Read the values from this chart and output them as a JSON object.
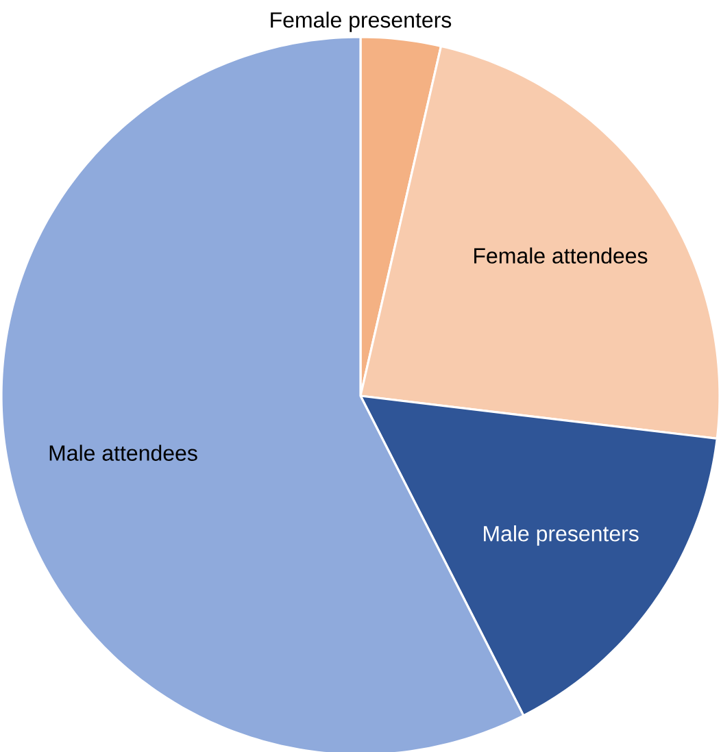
{
  "chart_data": {
    "type": "pie",
    "categories": [
      "Female presenters",
      "Female attendees",
      "Male presenters",
      "Male attendees"
    ],
    "values": [
      3.6,
      23.3,
      15.6,
      57.5
    ],
    "colors": [
      "#f4b183",
      "#f8cbad",
      "#2f5597",
      "#8faadc"
    ]
  }
}
